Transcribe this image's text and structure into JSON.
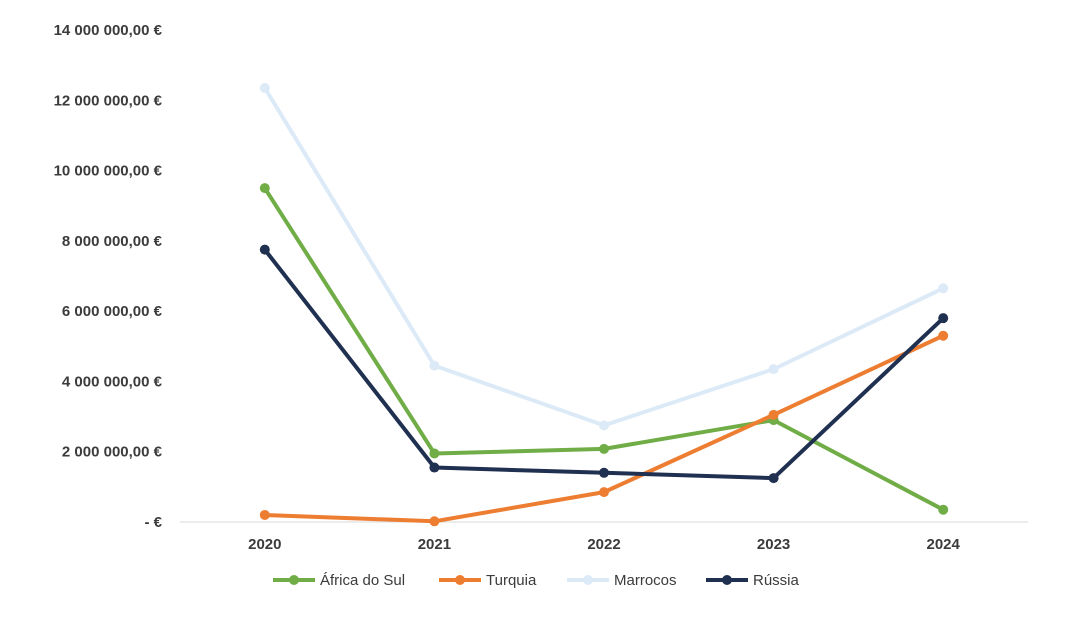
{
  "chart_data": {
    "type": "line",
    "title": "",
    "xlabel": "",
    "ylabel": "",
    "categories": [
      "2020",
      "2021",
      "2022",
      "2023",
      "2024"
    ],
    "ylim": [
      0,
      14000000
    ],
    "yticks": [
      0,
      2000000,
      4000000,
      6000000,
      8000000,
      10000000,
      12000000,
      14000000
    ],
    "ytick_labels": [
      "-  €",
      "2 000 000,00 €",
      "4 000 000,00 €",
      "6 000 000,00 €",
      "8 000 000,00 €",
      "10 000 000,00 €",
      "12 000 000,00 €",
      "14 000 000,00 €"
    ],
    "grid": false,
    "legend_position": "bottom",
    "series": [
      {
        "name": "África do Sul",
        "color": "#70ad47",
        "values": [
          9500000,
          1950000,
          2080000,
          2900000,
          350000
        ]
      },
      {
        "name": "Turquia",
        "color": "#ed7d31",
        "values": [
          200000,
          20000,
          850000,
          3050000,
          5300000
        ]
      },
      {
        "name": "Marrocos",
        "color": "#dceaf7",
        "values": [
          12350000,
          4450000,
          2750000,
          4350000,
          6650000
        ]
      },
      {
        "name": "Rússia",
        "color": "#203050",
        "values": [
          7750000,
          1550000,
          1400000,
          1250000,
          5800000
        ]
      }
    ]
  }
}
